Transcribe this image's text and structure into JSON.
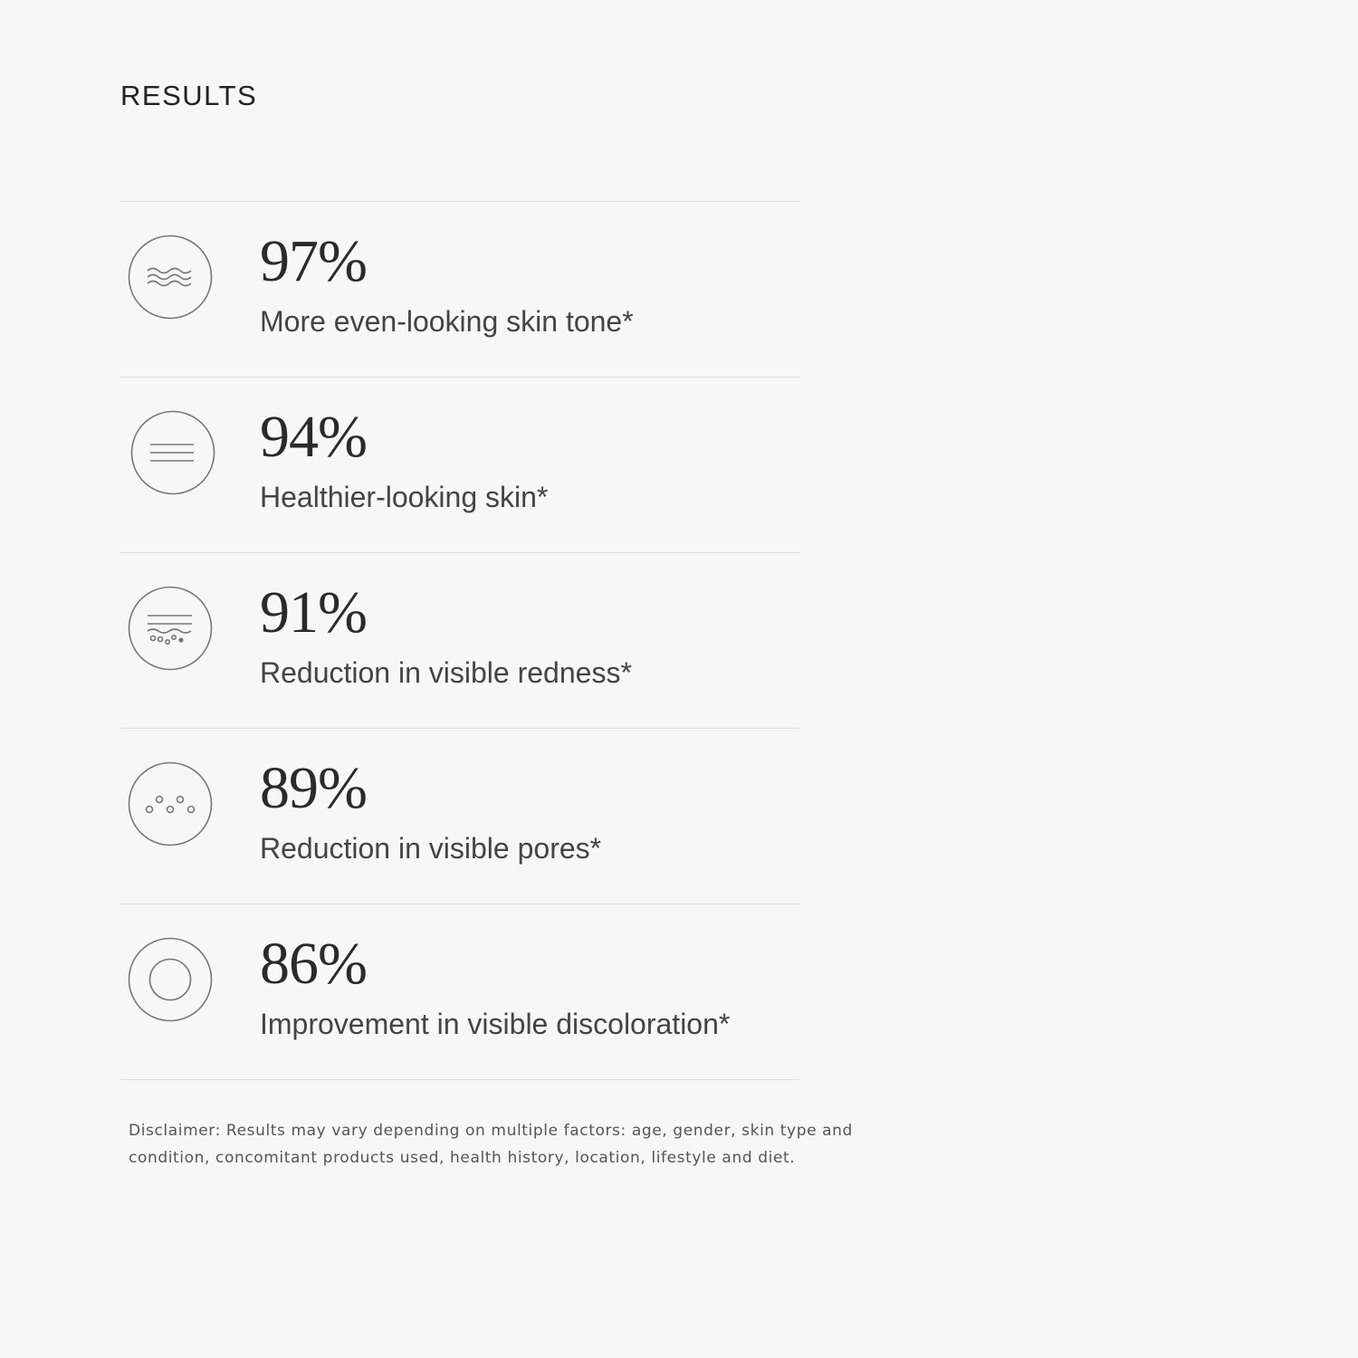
{
  "title": "RESULTS",
  "results": [
    {
      "percent": "97%",
      "label": "More even-looking skin tone*",
      "icon": "waves-icon"
    },
    {
      "percent": "94%",
      "label": "Healthier-looking skin*",
      "icon": "lines-icon"
    },
    {
      "percent": "91%",
      "label": "Reduction in visible redness*",
      "icon": "skin-layers-icon"
    },
    {
      "percent": "89%",
      "label": "Reduction in visible pores*",
      "icon": "pores-icon"
    },
    {
      "percent": "86%",
      "label": "Improvement in visible discoloration*",
      "icon": "concentric-circles-icon"
    }
  ],
  "disclaimer": "Disclaimer: Results may vary depending on multiple factors: age, gender, skin type and condition, concomitant products used, health history, location, lifestyle and diet."
}
